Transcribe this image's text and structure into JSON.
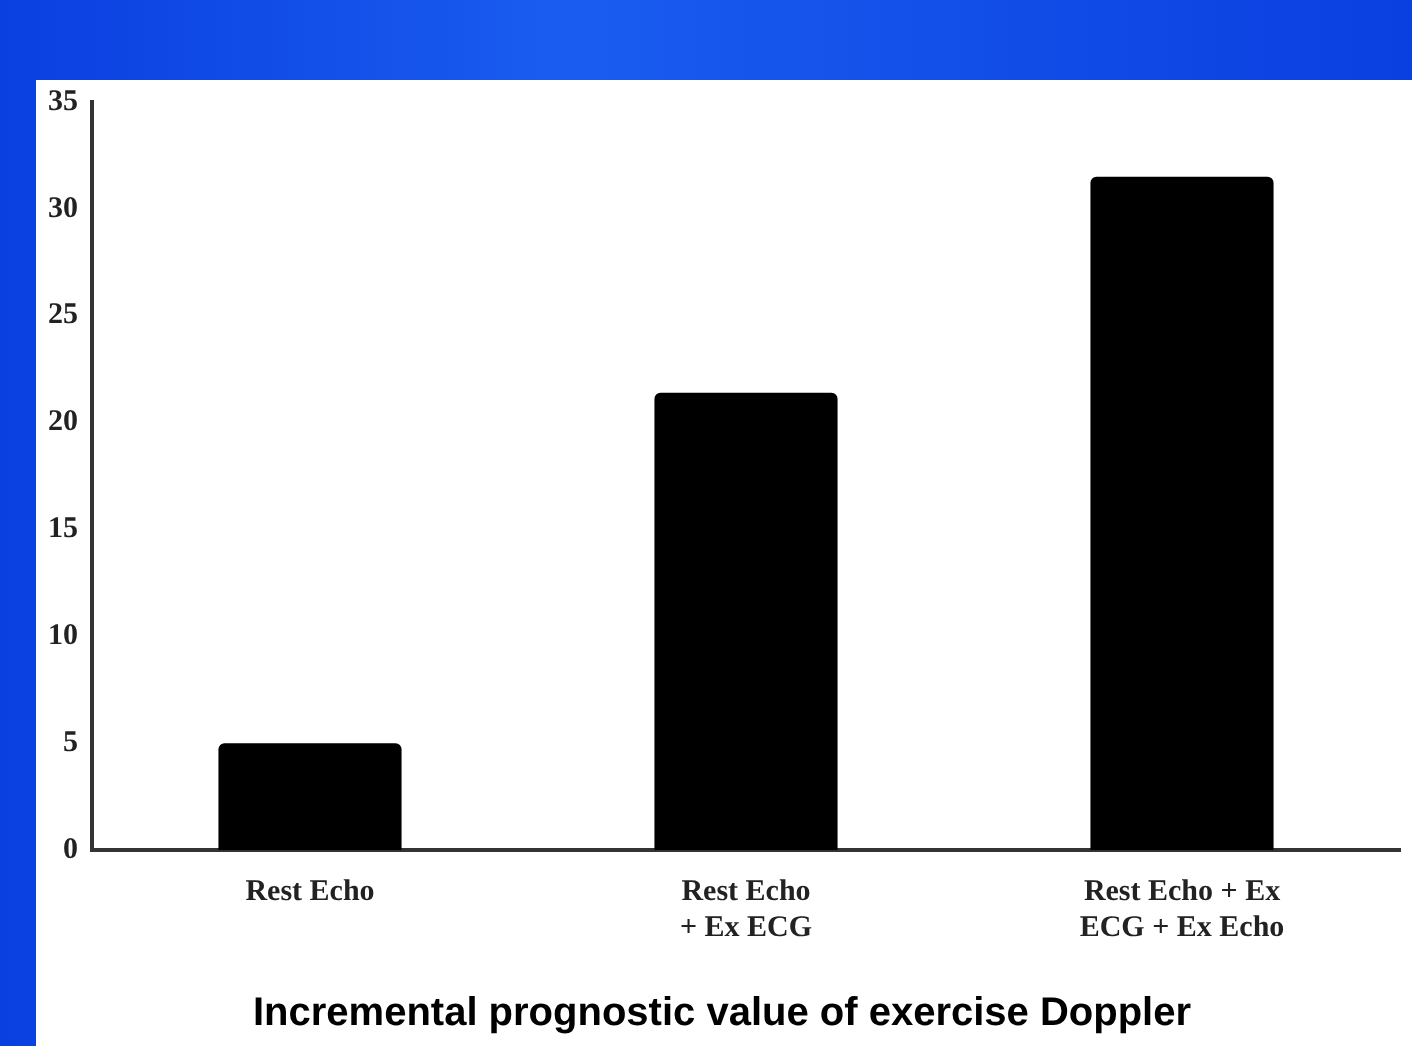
{
  "chart_data": {
    "type": "bar",
    "title": "Incremental prognostic value of exercise Doppler",
    "categories": [
      "Rest Echo",
      "Rest Echo\n+ Ex ECG",
      "Rest Echo + Ex\nECG + Ex Echo"
    ],
    "values": [
      5,
      21.4,
      31.5
    ],
    "color": "#000000",
    "ylim": [
      0,
      35
    ],
    "yticks": [
      0,
      5,
      10,
      15,
      20,
      25,
      30,
      35
    ],
    "grid": false,
    "legend": false
  }
}
